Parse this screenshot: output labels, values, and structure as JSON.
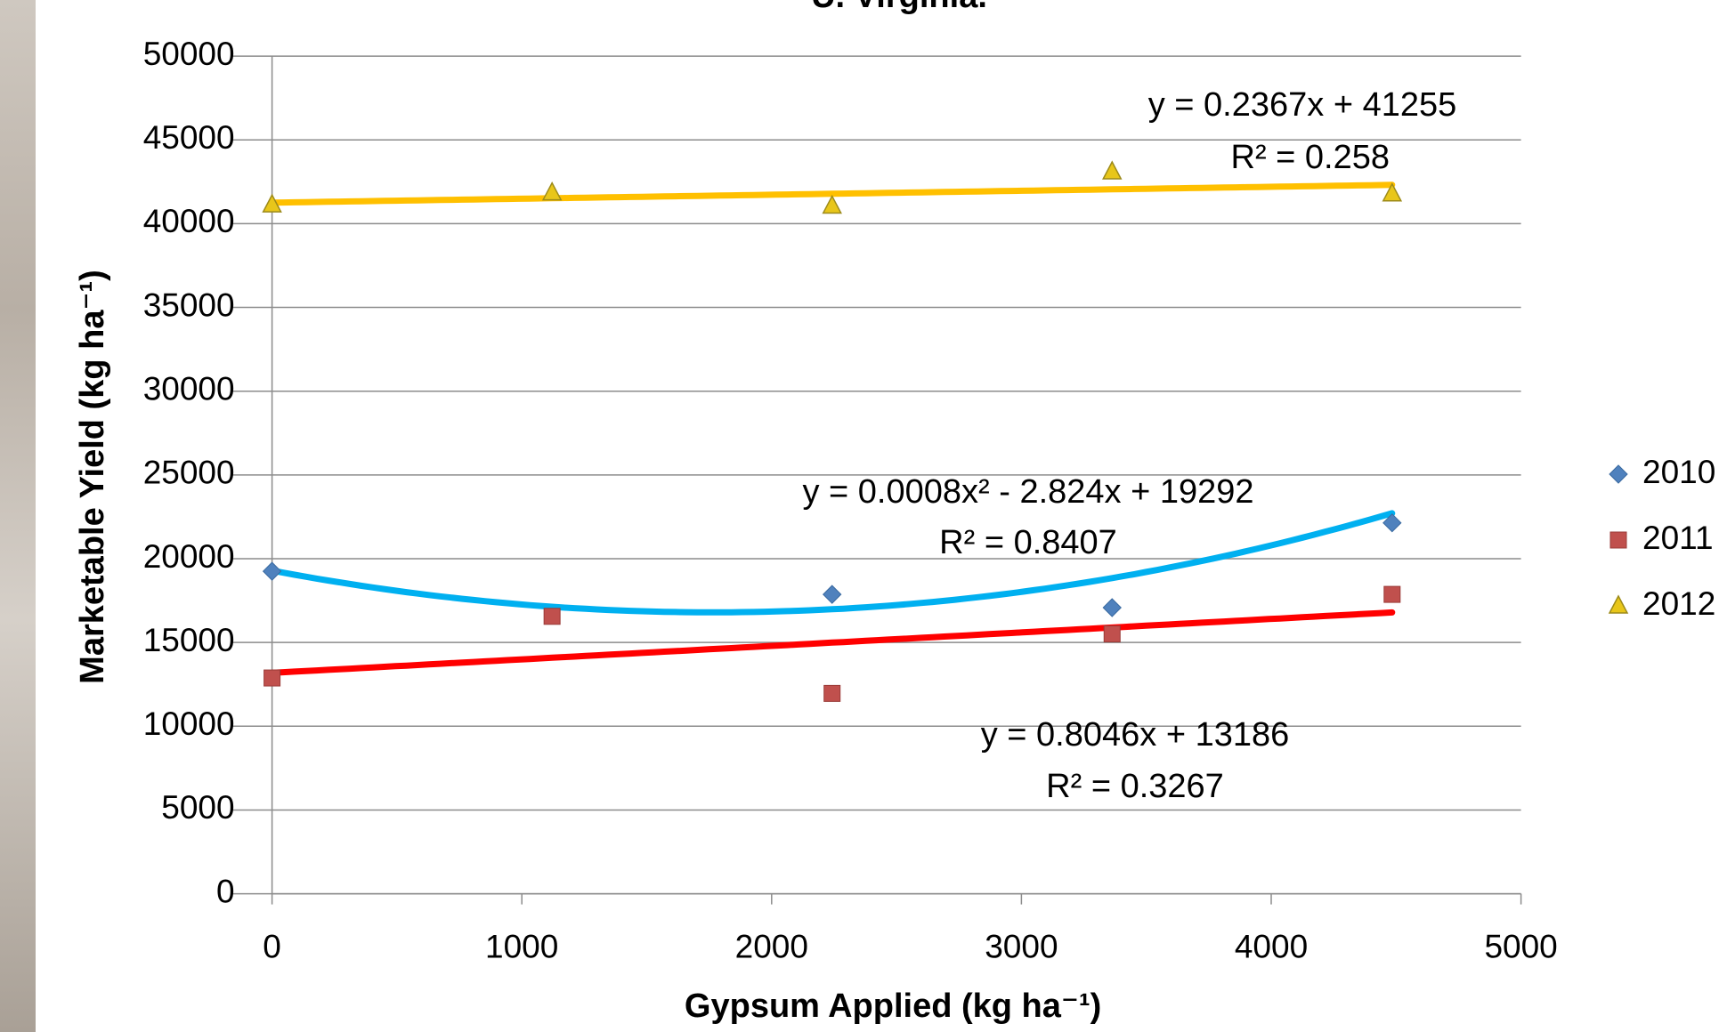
{
  "chart_data": {
    "type": "scatter",
    "title": "U. Virginia.",
    "x_label": "Gypsum Applied (kg ha⁻¹)",
    "y_label": "Marketable Yield (kg ha⁻¹)",
    "x": [
      0,
      1121,
      2242,
      3363,
      4484
    ],
    "series": [
      {
        "name": "2010",
        "color": "#4f81bd",
        "marker": "diamond",
        "values": [
          19250,
          null,
          17870,
          17080,
          22140
        ]
      },
      {
        "name": "2011",
        "color": "#c0504d",
        "marker": "square",
        "values": [
          12880,
          16560,
          11960,
          15510,
          17870
        ]
      },
      {
        "name": "2012",
        "color": "#e8c61a",
        "marker": "triangle",
        "values": [
          41130,
          41850,
          41060,
          43100,
          41790
        ]
      }
    ],
    "trendlines": [
      {
        "series": 0,
        "color": "#00b0f0",
        "coefficients": [
          0.0008,
          -2.824,
          19292
        ],
        "equation": "y = 0.0008x² - 2.824x + 19292",
        "r2": "R² = 0.8407"
      },
      {
        "series": 1,
        "color": "#ff0000",
        "coefficients": [
          0.8046,
          13186
        ],
        "equation": "y = 0.8046x + 13186",
        "r2": "R² = 0.3267"
      },
      {
        "series": 2,
        "color": "#ffc000",
        "coefficients": [
          0.2367,
          41255
        ],
        "equation": "y = 0.2367x + 41255",
        "r2": "R² = 0.258"
      }
    ],
    "xlim": [
      0,
      5000
    ],
    "xticks": [
      0,
      1000,
      2000,
      3000,
      4000,
      5000
    ],
    "ylim": [
      0,
      50000
    ],
    "yticks": [
      0,
      5000,
      10000,
      15000,
      20000,
      25000,
      30000,
      35000,
      40000,
      45000,
      50000
    ],
    "grid": true,
    "legend": "right"
  }
}
